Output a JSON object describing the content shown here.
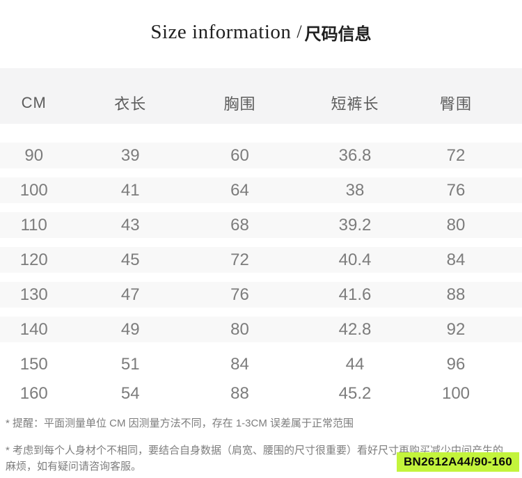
{
  "title": {
    "en": "Size information",
    "divider": "/",
    "zh": "尺码信息"
  },
  "chart_data": {
    "type": "table",
    "title": "Size information / 尺码信息",
    "columns": [
      "CM",
      "衣长",
      "胸围",
      "短裤长",
      "臀围"
    ],
    "rows": [
      [
        90,
        39,
        60,
        36.8,
        72
      ],
      [
        100,
        41,
        64,
        38,
        76
      ],
      [
        110,
        43,
        68,
        39.2,
        80
      ],
      [
        120,
        45,
        72,
        40.4,
        84
      ],
      [
        130,
        47,
        76,
        41.6,
        88
      ],
      [
        140,
        49,
        80,
        42.8,
        92
      ],
      [
        150,
        51,
        84,
        44,
        96
      ],
      [
        160,
        54,
        88,
        45.2,
        100
      ]
    ]
  },
  "notes": [
    "* 提醒：平面测量单位 CM 因测量方法不同，存在 1-3CM 误差属于正常范围",
    "* 考虑到每个人身材个不相同，要结合自身数据（肩宽、腰围的尺寸很重要）看好尺寸再购买减少中间产生的\n麻烦，如有疑问请咨询客服。"
  ],
  "badge": {
    "text": "BN2612A44/90-160",
    "bg_color": "#c3f43c"
  },
  "colors": {
    "header_band": "#f4f4f5",
    "row_band": "#f8f8f8"
  }
}
